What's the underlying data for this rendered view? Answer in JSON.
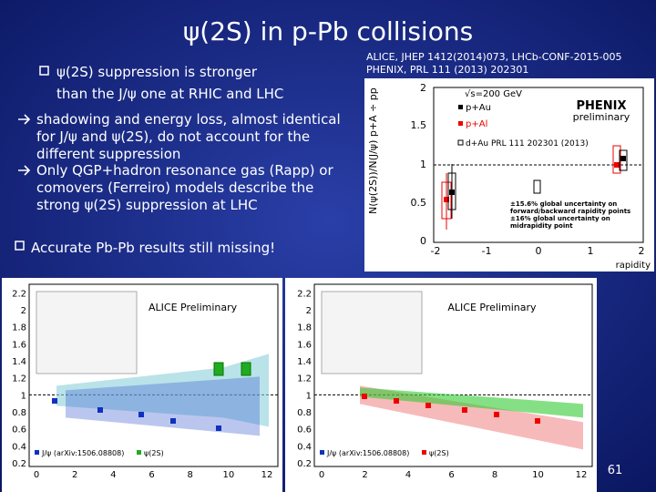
{
  "title": "ψ(2S) in p-Pb collisions",
  "references": [
    "ALICE, JHEP 1412(2014)073, LHCb-CONF-2015-005",
    "PHENIX, PRL 111 (2013) 202301"
  ],
  "bullet_1": [
    "ψ(2S) suppression is stronger",
    "than the J/ψ one at RHIC and LHC"
  ],
  "sub_bullets": [
    [
      "shadowing and energy loss, almost identical",
      "for J/ψ and ψ(2S), do not account for the",
      "different suppression"
    ],
    [
      "Only QGP+hadron resonance gas (Rapp) or",
      "comovers (Ferreiro) models describe the",
      "strong ψ(2S) suppression at LHC"
    ]
  ],
  "bullet_2": "Accurate Pb-Pb results still missing!",
  "phenix_plot": {
    "energy": "√s=200 GeV",
    "legend": [
      "p+Au",
      "p+Al",
      "d+Au PRL 111 202301 (2013)"
    ],
    "logo": "PHENIX",
    "logo_sub": "preliminary",
    "note_1": "±15.6% global uncertainty on forward/backward rapidity points",
    "note_2": "±16% global uncertainty on midrapidity point",
    "x_label": "rapidity",
    "y_ticks": [
      "0",
      "0.5",
      "1",
      "1.5",
      "2"
    ],
    "x_ticks": [
      "-2",
      "-1",
      "0",
      "1",
      "2"
    ]
  },
  "alice_panels": [
    {
      "header": "ALICE Preliminary",
      "y_ticks": [
        "2.2",
        "2",
        "1.8",
        "1.6",
        "1.4",
        "1.2",
        "1",
        "0.8",
        "0.6",
        "0.4",
        "0.2"
      ],
      "x_ticks": [
        "0",
        "2",
        "4",
        "6",
        "8",
        "10",
        "12"
      ],
      "legend": [
        "J/ψ (arXiv:1506.08808)",
        "ψ(2S)"
      ]
    },
    {
      "header": "ALICE Preliminary",
      "y_ticks": [
        "2.2",
        "2",
        "1.8",
        "1.6",
        "1.4",
        "1.2",
        "1",
        "0.8",
        "0.6",
        "0.4",
        "0.2"
      ],
      "x_ticks": [
        "0",
        "2",
        "4",
        "6",
        "8",
        "10",
        "12"
      ],
      "legend": [
        "J/ψ (arXiv:1506.08808)",
        "ψ(2S)"
      ]
    }
  ],
  "page_number": "61"
}
